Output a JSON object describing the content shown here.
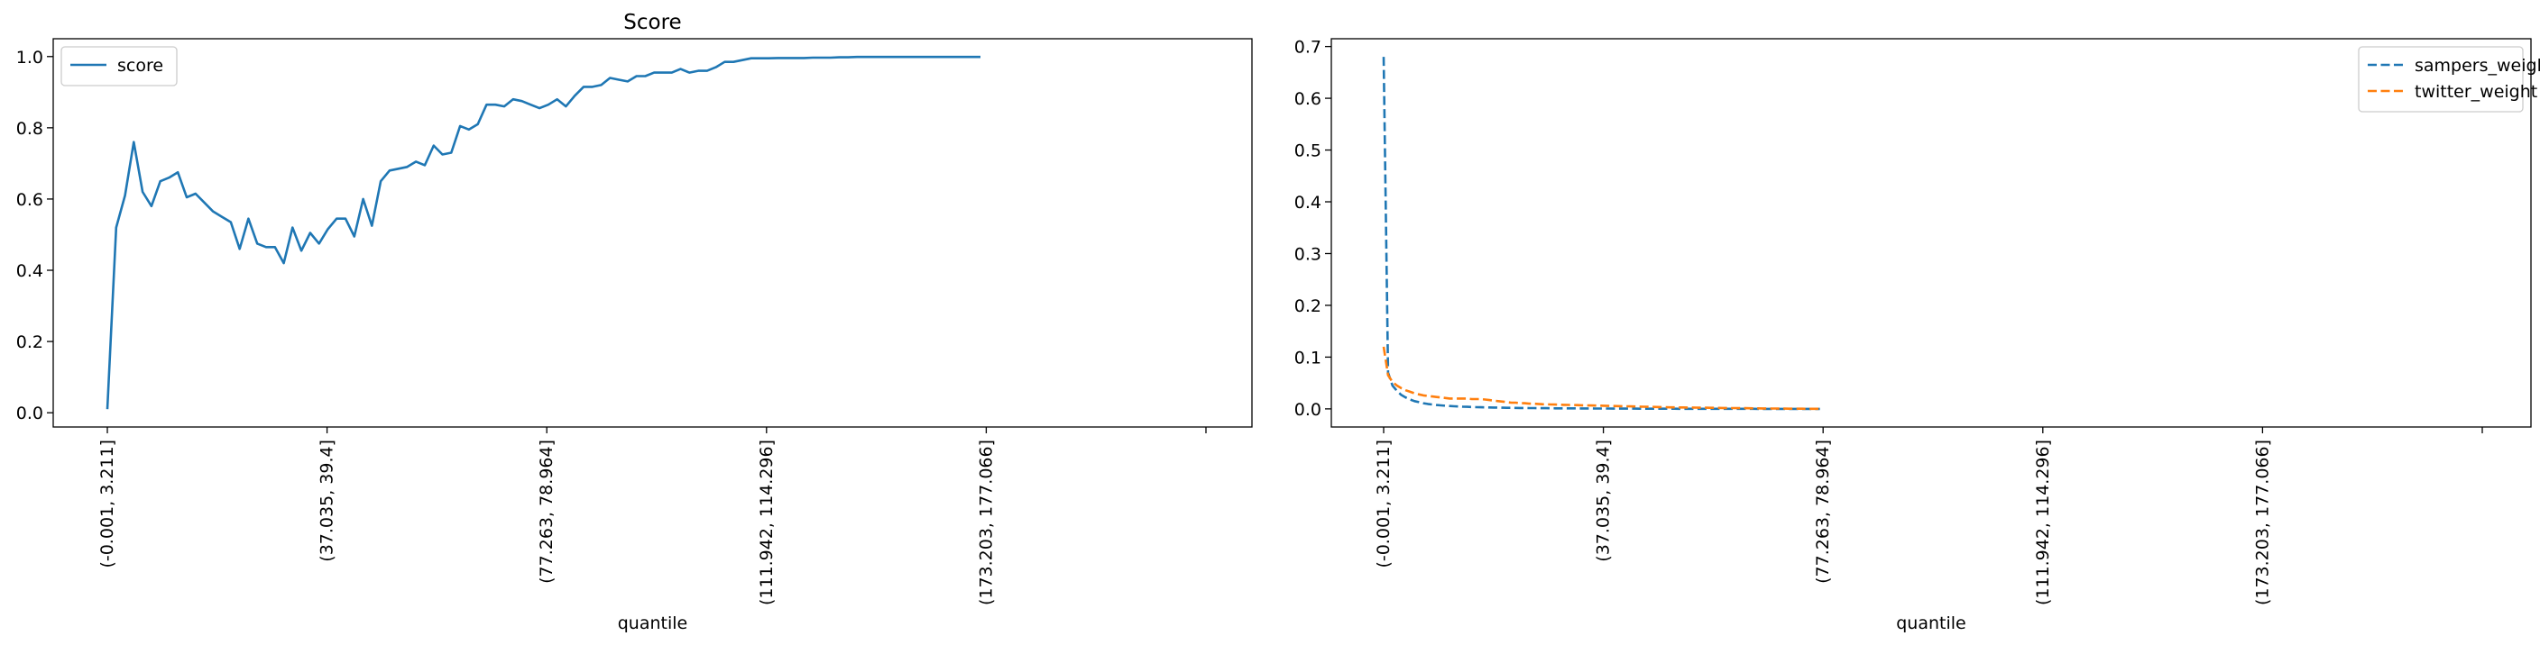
{
  "chart_data": [
    {
      "type": "line",
      "title": "Score",
      "xlabel": "quantile",
      "ylabel": "",
      "ylim": [
        -0.04,
        1.05
      ],
      "yticks": [
        "0.0",
        "0.2",
        "0.4",
        "0.6",
        "0.8",
        "1.0"
      ],
      "xtick_labels": [
        "(-0.001, 3.211]",
        "(37.035, 39.4]",
        "(77.263, 78.964]",
        "(111.942, 114.296]",
        "(173.203, 177.066]",
        ""
      ],
      "legend": "upper left",
      "grid": false,
      "series": [
        {
          "name": "score",
          "color": "#1f77b4",
          "style": "solid",
          "values": [
            0.01,
            0.52,
            0.61,
            0.76,
            0.62,
            0.58,
            0.65,
            0.66,
            0.675,
            0.605,
            0.615,
            0.59,
            0.565,
            0.55,
            0.535,
            0.46,
            0.545,
            0.475,
            0.465,
            0.465,
            0.42,
            0.52,
            0.455,
            0.505,
            0.475,
            0.515,
            0.545,
            0.545,
            0.495,
            0.6,
            0.525,
            0.65,
            0.68,
            0.685,
            0.69,
            0.705,
            0.695,
            0.75,
            0.725,
            0.73,
            0.805,
            0.795,
            0.81,
            0.865,
            0.865,
            0.86,
            0.88,
            0.875,
            0.865,
            0.855,
            0.865,
            0.88,
            0.86,
            0.89,
            0.915,
            0.915,
            0.92,
            0.94,
            0.935,
            0.93,
            0.945,
            0.945,
            0.955,
            0.955,
            0.955,
            0.965,
            0.955,
            0.96,
            0.96,
            0.97,
            0.985,
            0.985,
            0.99,
            0.995,
            0.995,
            0.995,
            0.996,
            0.996,
            0.996,
            0.996,
            0.997,
            0.997,
            0.997,
            0.998,
            0.998,
            0.999,
            0.999,
            0.999,
            0.999,
            0.999,
            0.999,
            0.999,
            0.999,
            0.999,
            0.999,
            0.999,
            0.999,
            0.999,
            0.999,
            0.999
          ]
        }
      ]
    },
    {
      "type": "line",
      "title": "",
      "xlabel": "quantile",
      "ylabel": "",
      "ylim": [
        -0.035,
        0.715
      ],
      "yticks": [
        "0.0",
        "0.1",
        "0.2",
        "0.3",
        "0.4",
        "0.5",
        "0.6",
        "0.7"
      ],
      "xtick_labels": [
        "(-0.001, 3.211]",
        "(37.035, 39.4]",
        "(77.263, 78.964]",
        "(111.942, 114.296]",
        "(173.203, 177.066]",
        ""
      ],
      "legend": "upper right",
      "grid": false,
      "series": [
        {
          "name": "sampers_weight",
          "color": "#1f77b4",
          "style": "dashed",
          "values": [
            0.68,
            0.07,
            0.045,
            0.035,
            0.027,
            0.022,
            0.018,
            0.015,
            0.013,
            0.011,
            0.0095,
            0.0085,
            0.0075,
            0.0067,
            0.006,
            0.0055,
            0.005,
            0.0046,
            0.0042,
            0.0039,
            0.0036,
            0.0033,
            0.0031,
            0.0029,
            0.0027,
            0.0025,
            0.0024,
            0.0022,
            0.0021,
            0.002,
            0.0019,
            0.0018,
            0.0017,
            0.0016,
            0.0015,
            0.0014,
            0.0013,
            0.0013,
            0.0012,
            0.0011,
            0.0011,
            0.001,
            0.001,
            0.00095,
            0.0009,
            0.00085,
            0.0008,
            0.00076,
            0.00072,
            0.00068,
            0.00064,
            0.0006,
            0.00057,
            0.00054,
            0.00051,
            0.00048,
            0.00045,
            0.00043,
            0.0004,
            0.00038,
            0.00036,
            0.00034,
            0.00032,
            0.0003,
            0.00028,
            0.00026,
            0.00025,
            0.00023,
            0.00022,
            0.0002,
            0.00019,
            0.00018,
            0.00017,
            0.00016,
            0.00015,
            0.00014,
            0.00013,
            0.00012,
            0.00011,
            0.0001,
            0.0001,
            9e-05,
            8e-05,
            8e-05,
            7e-05,
            6e-05,
            6e-05,
            5e-05,
            5e-05,
            4e-05,
            4e-05,
            3e-05,
            3e-05,
            3e-05,
            2e-05,
            2e-05,
            2e-05,
            1e-05,
            1e-05,
            1e-05
          ]
        },
        {
          "name": "twitter_weight",
          "color": "#ff7f0e",
          "style": "dashed",
          "values": [
            0.12,
            0.065,
            0.052,
            0.045,
            0.04,
            0.036,
            0.033,
            0.03,
            0.028,
            0.026,
            0.025,
            0.024,
            0.023,
            0.022,
            0.021,
            0.02,
            0.02,
            0.02,
            0.02,
            0.02,
            0.019,
            0.019,
            0.019,
            0.018,
            0.017,
            0.016,
            0.015,
            0.014,
            0.013,
            0.012,
            0.012,
            0.011,
            0.011,
            0.01,
            0.01,
            0.0095,
            0.009,
            0.0088,
            0.0085,
            0.0083,
            0.008,
            0.0078,
            0.0076,
            0.0074,
            0.0072,
            0.007,
            0.0068,
            0.0066,
            0.0064,
            0.0062,
            0.006,
            0.0058,
            0.0056,
            0.0054,
            0.0052,
            0.005,
            0.0048,
            0.0046,
            0.0044,
            0.0042,
            0.004,
            0.0038,
            0.0036,
            0.0034,
            0.0032,
            0.003,
            0.0029,
            0.0028,
            0.0027,
            0.0026,
            0.0025,
            0.0024,
            0.0023,
            0.0022,
            0.0021,
            0.002,
            0.0019,
            0.0018,
            0.0017,
            0.0016,
            0.0015,
            0.0014,
            0.0013,
            0.0012,
            0.0011,
            0.001,
            0.0009,
            0.0008,
            0.0007,
            0.0006,
            0.0005,
            0.0005,
            0.0004,
            0.0004,
            0.0003,
            0.0003,
            0.0002,
            0.0002,
            0.0001,
            0.0001
          ]
        }
      ]
    }
  ]
}
